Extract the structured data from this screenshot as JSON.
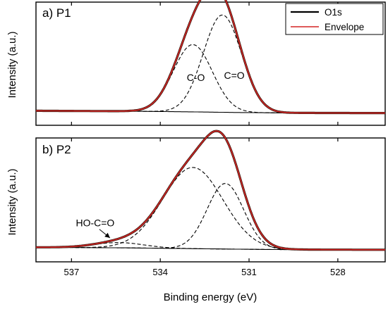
{
  "chart_data": {
    "type": "line",
    "xlabel": "Binding energy (eV)",
    "x_ticks": [
      537,
      534,
      531,
      528
    ],
    "xlim": [
      538.2,
      526.4
    ],
    "x_reversed": true,
    "legend": {
      "position": "top-right",
      "entries": [
        {
          "label": "O1s",
          "color": "#000000"
        },
        {
          "label": "Envelope",
          "color": "#d32424"
        }
      ]
    },
    "panels": [
      {
        "label": "a) P1",
        "ylabel": "Intensity (a.u.)",
        "ylim": [
          -0.14,
          1.05
        ],
        "background": {
          "x": [
            538.2,
            535.0,
            533.0,
            531.5,
            530.0,
            526.4
          ],
          "y": [
            0.0,
            -0.004,
            -0.01,
            -0.016,
            -0.02,
            -0.022
          ]
        },
        "components": [
          {
            "label": "C-O",
            "center": 532.9,
            "height": 0.65,
            "width": 1.55
          },
          {
            "label": "C=O",
            "center": 531.9,
            "height": 0.94,
            "width": 1.52
          }
        ],
        "annotations": [
          {
            "text": "C-O",
            "x": 532.8,
            "y": 0.29
          },
          {
            "text": "C=O",
            "x": 531.5,
            "y": 0.31
          }
        ]
      },
      {
        "label": "b) P2",
        "ylabel": "Intensity (a.u.)",
        "ylim": [
          -0.14,
          1.05
        ],
        "background": {
          "x": [
            538.2,
            535.0,
            533.0,
            531.5,
            530.0,
            526.4
          ],
          "y": [
            0.0,
            -0.006,
            -0.013,
            -0.018,
            -0.022,
            -0.024
          ]
        },
        "components": [
          {
            "label": "HO-C=O",
            "center": 535.4,
            "height": 0.05,
            "width": 2.0
          },
          {
            "label": "C-O",
            "center": 532.9,
            "height": 0.78,
            "width": 2.4
          },
          {
            "label": "C=O",
            "center": 531.8,
            "height": 0.63,
            "width": 1.45
          }
        ],
        "annotations": [
          {
            "text": "HO-C=O",
            "x": 536.2,
            "y": 0.2,
            "arrow_to": [
              535.7,
              0.09
            ]
          }
        ]
      }
    ]
  }
}
